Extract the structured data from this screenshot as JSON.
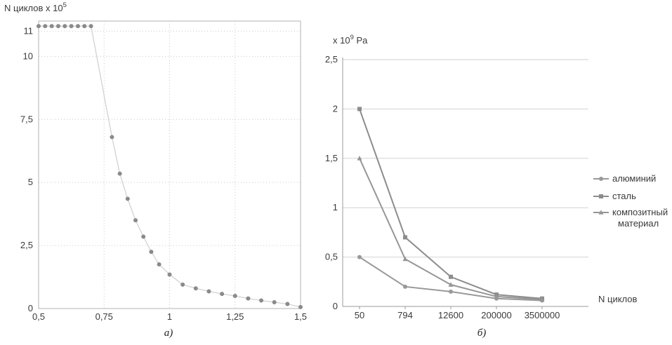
{
  "captions": {
    "a": "а)",
    "b": "б)"
  },
  "colors": {
    "grid": "#c9c9c9",
    "grid_b": "#d2d2d2",
    "border": "#b3b3b3",
    "axis": "#9b9b9b",
    "text": "#3a3a3a"
  },
  "chart_data": [
    {
      "id": "a",
      "type": "scatter",
      "title_base": "N циклов x 10",
      "title_sup": "5",
      "title_rest": "",
      "xlim": [
        0.5,
        1.5
      ],
      "ylim": [
        0,
        11.4
      ],
      "grid": "dotted",
      "point_color": "#8a8a8a",
      "line_color": "#d2d2d2",
      "x_ticks": [
        {
          "v": 0.5,
          "label": "0,5"
        },
        {
          "v": 0.75,
          "label": "0,75"
        },
        {
          "v": 1,
          "label": "1"
        },
        {
          "v": 1.25,
          "label": "1,25"
        },
        {
          "v": 1.5,
          "label": "1,5"
        }
      ],
      "y_ticks": [
        {
          "v": 0,
          "label": "0"
        },
        {
          "v": 2.5,
          "label": "2,5"
        },
        {
          "v": 5,
          "label": "5"
        },
        {
          "v": 7.5,
          "label": "7,5"
        },
        {
          "v": 10,
          "label": "10"
        },
        {
          "v": 11,
          "label": "11"
        }
      ],
      "points": [
        [
          0.5,
          11.2
        ],
        [
          0.525,
          11.2
        ],
        [
          0.55,
          11.2
        ],
        [
          0.575,
          11.2
        ],
        [
          0.6,
          11.2
        ],
        [
          0.625,
          11.2
        ],
        [
          0.65,
          11.2
        ],
        [
          0.675,
          11.2
        ],
        [
          0.7,
          11.2
        ],
        [
          0.78,
          6.8
        ],
        [
          0.81,
          5.35
        ],
        [
          0.84,
          4.35
        ],
        [
          0.87,
          3.5
        ],
        [
          0.9,
          2.85
        ],
        [
          0.93,
          2.25
        ],
        [
          0.96,
          1.75
        ],
        [
          1.0,
          1.35
        ],
        [
          1.05,
          0.95
        ],
        [
          1.1,
          0.8
        ],
        [
          1.15,
          0.68
        ],
        [
          1.2,
          0.58
        ],
        [
          1.25,
          0.5
        ],
        [
          1.3,
          0.4
        ],
        [
          1.35,
          0.32
        ],
        [
          1.4,
          0.25
        ],
        [
          1.45,
          0.18
        ],
        [
          1.5,
          0.06
        ]
      ]
    },
    {
      "id": "b",
      "type": "line",
      "title_base": "x 10",
      "title_sup": "9",
      "title_rest": " Pa",
      "xlabel": "N циклов",
      "ylim": [
        0,
        2.5
      ],
      "grid": "solid-horizontal",
      "legend_position": "right",
      "categories": [
        "50",
        "794",
        "12600",
        "200000",
        "3500000"
      ],
      "y_ticks": [
        {
          "v": 0,
          "label": "0"
        },
        {
          "v": 0.5,
          "label": "0,5"
        },
        {
          "v": 1,
          "label": "1"
        },
        {
          "v": 1.5,
          "label": "1,5"
        },
        {
          "v": 2,
          "label": "2"
        },
        {
          "v": 2.5,
          "label": "2,5"
        }
      ],
      "series": [
        {
          "name": "алюминий",
          "marker": "circle",
          "color": "#999999",
          "values": [
            0.5,
            0.2,
            0.15,
            0.08,
            0.06
          ],
          "legend_lines": [
            "алюминий"
          ]
        },
        {
          "name": "сталь",
          "marker": "square",
          "color": "#8c8c8c",
          "values": [
            2.0,
            0.7,
            0.3,
            0.12,
            0.08
          ],
          "legend_lines": [
            "сталь"
          ]
        },
        {
          "name": "композитный материал",
          "marker": "triangle",
          "color": "#969696",
          "values": [
            1.5,
            0.48,
            0.22,
            0.1,
            0.07
          ],
          "legend_lines": [
            "композитный",
            "материал"
          ]
        }
      ]
    }
  ]
}
